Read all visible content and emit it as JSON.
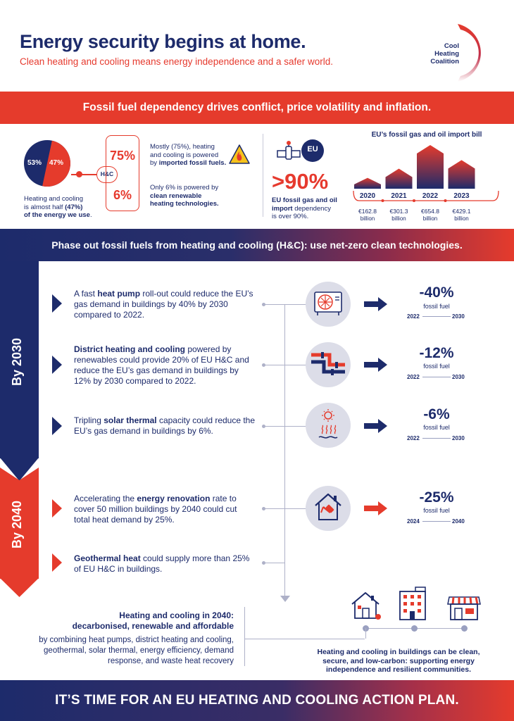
{
  "header": {
    "title": "Energy security begins at home.",
    "subtitle": "Clean heating and cooling means energy independence and a safer world.",
    "logo": "Cool Heating Coalition"
  },
  "banners": {
    "top": "Fossil fuel dependency drives conflict, price volatility and inflation.",
    "middle": "Phase out fossil fuels from heating and cooling (H&C): use net-zero clean technologies.",
    "bottom": "IT’S TIME FOR AN EU HEATING AND COOLING ACTION PLAN."
  },
  "energy_share": {
    "pie_left": "53%",
    "pie_right": "47%",
    "caption_1": "Heating and cooling",
    "caption_2": "is almost half ",
    "caption_2b": "(47%)",
    "caption_3": "of the energy we use",
    "caption_3b": ".",
    "hc_label": "H&C",
    "pct_fossil": "75%",
    "pct_clean": "6%",
    "fossil_text_1": "Mostly (75%), heating",
    "fossil_text_2": "and cooling is powered",
    "fossil_text_3a": "by ",
    "fossil_text_3b": "imported fossil fuels.",
    "clean_text_1": "Only 6% is powered by",
    "clean_text_2": "clean renewable",
    "clean_text_3": "heating technologies."
  },
  "import_dependency": {
    "big_number": ">90%",
    "line_1": "EU fossil gas and oil",
    "line_2a": "import",
    "line_2b": " dependency",
    "line_3": "is over 90%.",
    "eu_badge": "EU"
  },
  "import_bill": {
    "title": "EU’s fossil gas and oil import bill",
    "unit": "billion",
    "years": [
      "2020",
      "2021",
      "2022",
      "2023"
    ],
    "amounts": [
      "€162.8",
      "€301.3",
      "€654.8",
      "€429.1"
    ],
    "values": [
      162.8,
      301.3,
      654.8,
      429.1
    ]
  },
  "timeline": {
    "by_2030": "By 2030",
    "by_2040": "By 2040",
    "items": [
      {
        "pre": "A fast ",
        "bold": "heat pump",
        "post": " roll-out could reduce the EU’s gas demand in buildings by 40% by 2030 compared to 2022.",
        "pct": "-40%",
        "unit": "fossil fuel",
        "from": "2022",
        "to": "2030"
      },
      {
        "pre": "",
        "bold": "District heating and cooling",
        "post": " powered by renewables could provide 20% of EU H&C and reduce the EU’s gas demand in buildings by 12% by 2030 compared to 2022.",
        "pct": "-12%",
        "unit": "fossil fuel",
        "from": "2022",
        "to": "2030"
      },
      {
        "pre": "Tripling ",
        "bold": "solar thermal",
        "post": " capacity could reduce the EU’s gas demand in buildings by 6%.",
        "pct": "-6%",
        "unit": "fossil fuel",
        "from": "2022",
        "to": "2030"
      },
      {
        "pre": "Accelerating the ",
        "bold": "energy renovation",
        "post": " rate to cover 50 million buildings by 2040 could cut total heat demand by 25%.",
        "pct": "-25%",
        "unit": "fossil fuel",
        "from": "2024",
        "to": "2040"
      },
      {
        "pre": "",
        "bold": "Geothermal heat",
        "post": " could supply more than 25% of EU H&C in buildings."
      }
    ]
  },
  "conclusion": {
    "heading_1": "Heating and cooling in 2040:",
    "heading_2": "decarbonised, renewable and affordable",
    "body": "by combining heat pumps, district heating and cooling, geothermal, solar thermal, energy efficiency, demand response, and waste heat recovery",
    "right_text": "Heating and cooling in buildings can be clean, secure, and low-carbon: supporting energy independence and resilient communities."
  },
  "colors": {
    "navy": "#1d2b6b",
    "red": "#e53b2c",
    "grey": "#dcdde8"
  }
}
